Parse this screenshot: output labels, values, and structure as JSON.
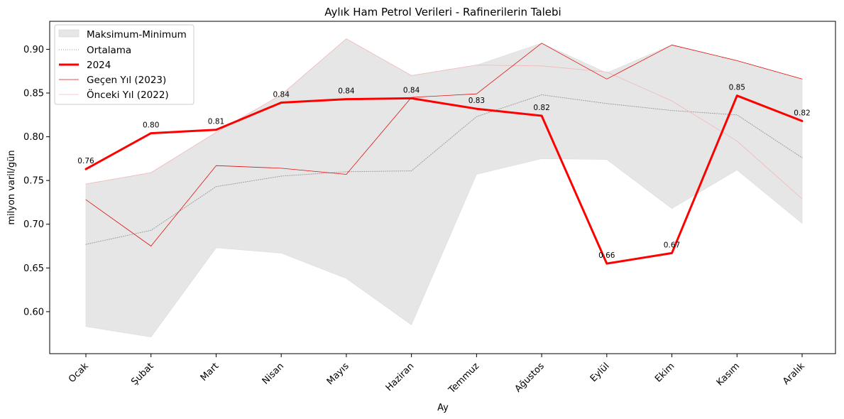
{
  "chart_data": {
    "type": "line",
    "title": "Aylık Ham Petrol Verileri - Rafinerilerin Talebi",
    "xlabel": "Ay",
    "ylabel": "milyon varil/gün",
    "categories": [
      "Ocak",
      "Şubat",
      "Mart",
      "Nisan",
      "Mayıs",
      "Haziran",
      "Temmuz",
      "Ağustos",
      "Eylül",
      "Ekim",
      "Kasım",
      "Aralık"
    ],
    "ylim": [
      0.552,
      0.932
    ],
    "yticks": [
      0.6,
      0.65,
      0.7,
      0.75,
      0.8,
      0.85,
      0.9
    ],
    "ytick_labels": [
      "0.60",
      "0.65",
      "0.70",
      "0.75",
      "0.80",
      "0.85",
      "0.90"
    ],
    "grid": false,
    "legend_position": "top-left",
    "band": {
      "name": "Maksimum-Minimum",
      "color": "#e6e6e6",
      "max": [
        0.746,
        0.759,
        0.805,
        0.848,
        0.912,
        0.87,
        0.882,
        0.907,
        0.873,
        0.905,
        0.887,
        0.866
      ],
      "min": [
        0.583,
        0.571,
        0.673,
        0.667,
        0.638,
        0.585,
        0.757,
        0.775,
        0.774,
        0.718,
        0.762,
        0.701
      ]
    },
    "series": [
      {
        "name": "Ortalama",
        "color": "#999999",
        "style": "dotted",
        "width": 1,
        "values": [
          0.677,
          0.693,
          0.743,
          0.755,
          0.76,
          0.761,
          0.823,
          0.848,
          0.838,
          0.83,
          0.825,
          0.776
        ]
      },
      {
        "name": "2024",
        "color": "#ff0000",
        "style": "solid",
        "width": 3,
        "values": [
          0.763,
          0.804,
          0.808,
          0.839,
          0.843,
          0.844,
          0.832,
          0.824,
          0.655,
          0.667,
          0.847,
          0.818
        ],
        "labels": [
          "0.76",
          "0.80",
          "0.81",
          "0.84",
          "0.84",
          "0.84",
          "0.83",
          "0.82",
          "0.66",
          "0.67",
          "0.85",
          "0.82"
        ]
      },
      {
        "name": "Geçen Yıl (2023)",
        "color": "#e01010",
        "style": "solid",
        "width": 0.8,
        "values": [
          0.728,
          0.675,
          0.767,
          0.764,
          0.757,
          0.845,
          0.849,
          0.907,
          0.866,
          0.905,
          0.887,
          0.866
        ]
      },
      {
        "name": "Önceki Yıl (2022)",
        "color": "#f2b8b8",
        "style": "solid",
        "width": 0.8,
        "values": [
          0.746,
          0.759,
          0.805,
          0.848,
          0.912,
          0.87,
          0.882,
          0.881,
          0.874,
          0.841,
          0.795,
          0.729
        ]
      }
    ]
  }
}
